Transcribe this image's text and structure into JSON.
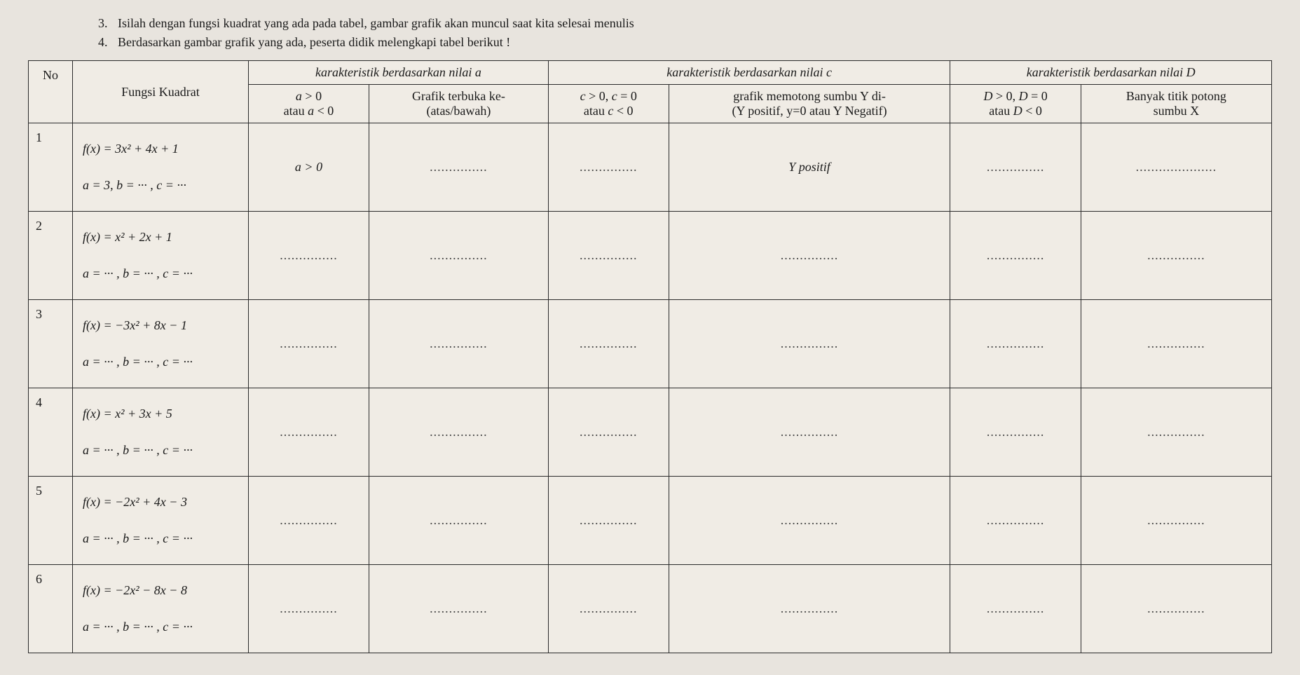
{
  "instructions": [
    {
      "num": "3.",
      "text": "Isilah dengan fungsi kuadrat yang ada pada tabel, gambar grafik akan muncul saat kita selesai menulis"
    },
    {
      "num": "4.",
      "text": "Berdasarkan gambar grafik yang ada, peserta didik melengkapi tabel berikut !"
    }
  ],
  "headers": {
    "no": "No",
    "fungsi": "Fungsi Kuadrat",
    "group_a": "karakteristik berdasarkan nilai a",
    "a_sign": "a > 0\natau a < 0",
    "a_open": "Grafik terbuka ke-\n(atas/bawah)",
    "group_c": "karakteristik berdasarkan nilai c",
    "c_sign": "c > 0, c = 0\natau c < 0",
    "c_intersect": "grafik memotong sumbu Y di-\n(Y positif, y=0 atau Y Negatif)",
    "group_d": "karakteristik berdasarkan nilai D",
    "d_sign": "D > 0, D = 0\natau D < 0",
    "d_roots": "Banyak titik potong\nsumbu X"
  },
  "dots": "...............",
  "rows": [
    {
      "no": "1",
      "fn": "f(x) = 3x² + 4x + 1",
      "coef": "a = 3, b = ··· , c = ···",
      "a_sign": "a > 0",
      "a_open": "...............",
      "c_sign": "...............",
      "c_intersect": "Y positif",
      "d_sign": "...............",
      "d_roots": "....................."
    },
    {
      "no": "2",
      "fn": "f(x) = x² + 2x + 1",
      "coef": "a = ··· , b = ··· , c = ···",
      "a_sign": "...............",
      "a_open": "...............",
      "c_sign": "...............",
      "c_intersect": "...............",
      "d_sign": "...............",
      "d_roots": "..............."
    },
    {
      "no": "3",
      "fn": "f(x) = −3x² + 8x − 1",
      "coef": "a = ··· , b = ··· , c = ···",
      "a_sign": "...............",
      "a_open": "...............",
      "c_sign": "...............",
      "c_intersect": "...............",
      "d_sign": "...............",
      "d_roots": "..............."
    },
    {
      "no": "4",
      "fn": "f(x) = x² + 3x + 5",
      "coef": "a = ··· , b = ··· , c = ···",
      "a_sign": "...............",
      "a_open": "...............",
      "c_sign": "...............",
      "c_intersect": "...............",
      "d_sign": "...............",
      "d_roots": "..............."
    },
    {
      "no": "5",
      "fn": "f(x) = −2x² + 4x − 3",
      "coef": "a = ··· , b = ··· , c = ···",
      "a_sign": "...............",
      "a_open": "...............",
      "c_sign": "...............",
      "c_intersect": "...............",
      "d_sign": "...............",
      "d_roots": "..............."
    },
    {
      "no": "6",
      "fn": "f(x) = −2x² − 8x − 8",
      "coef": "a = ··· , b = ··· , c = ···",
      "a_sign": "...............",
      "a_open": "...............",
      "c_sign": "...............",
      "c_intersect": "...............",
      "d_sign": "...............",
      "d_roots": "..............."
    }
  ]
}
